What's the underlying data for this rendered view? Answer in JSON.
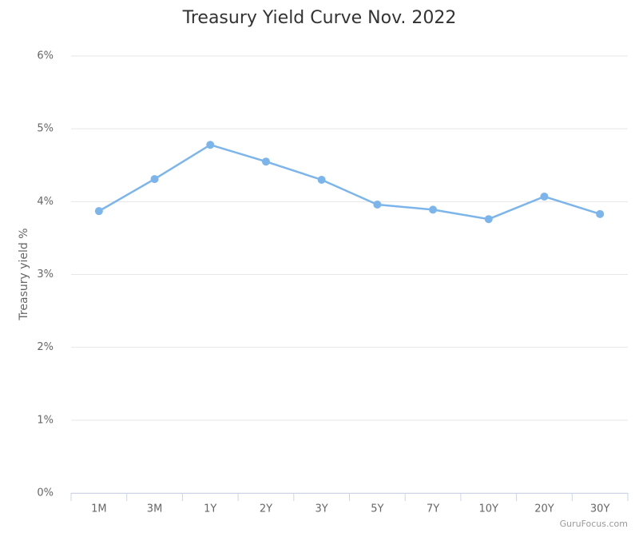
{
  "chart_data": {
    "type": "line",
    "title": "Treasury Yield Curve Nov. 2022",
    "y_label": "Treasury yield %",
    "credit": "GuruFocus.com",
    "categories": [
      "1M",
      "3M",
      "1Y",
      "2Y",
      "3Y",
      "5Y",
      "7Y",
      "10Y",
      "20Y",
      "30Y"
    ],
    "values": [
      3.87,
      4.31,
      4.78,
      4.55,
      4.3,
      3.96,
      3.89,
      3.76,
      4.07,
      3.83
    ],
    "color": "#7cb5ec",
    "ylim": [
      0,
      6
    ],
    "yticks": [
      {
        "value": 0,
        "label": "0%"
      },
      {
        "value": 1,
        "label": "1%"
      },
      {
        "value": 2,
        "label": "2%"
      },
      {
        "value": 3,
        "label": "3%"
      },
      {
        "value": 4,
        "label": "4%"
      },
      {
        "value": 5,
        "label": "5%"
      },
      {
        "value": 6,
        "label": "6%"
      }
    ],
    "grid": true
  }
}
